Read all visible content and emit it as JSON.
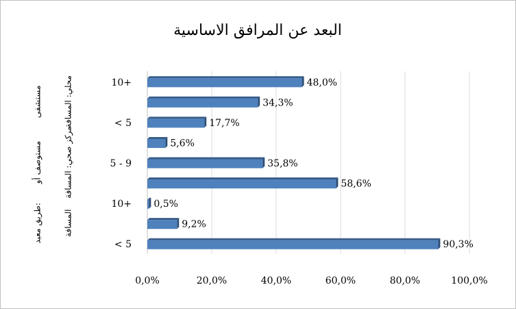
{
  "chart_data": {
    "type": "bar",
    "orientation": "horizontal",
    "title": "البعد عن المرافق الاساسية",
    "categories": [
      "10+",
      null,
      "< 5",
      null,
      "5 - 9",
      null,
      "10+",
      null,
      "< 5"
    ],
    "groups": [
      {
        "lines": [
          "مستشفى",
          "محلي: المسافة"
        ]
      },
      {
        "lines": [
          "مستوصف أو",
          "مركز صحي: المسافة"
        ]
      },
      {
        "lines": [
          "طريق معبد:",
          "المسافة"
        ]
      }
    ],
    "values": [
      48.0,
      34.3,
      17.7,
      5.6,
      35.8,
      58.6,
      0.5,
      9.2,
      90.3
    ],
    "value_labels": [
      "48,0%",
      "34,3%",
      "17,7%",
      "5,6%",
      "35,8%",
      "58,6%",
      "0,5%",
      "9,2%",
      "90,3%"
    ],
    "color": "#4f81bd",
    "xlim": [
      0,
      100
    ],
    "xticks": [
      {
        "value": 0,
        "label": "0,0%"
      },
      {
        "value": 20,
        "label": "20,0%"
      },
      {
        "value": 40,
        "label": "40,0%"
      },
      {
        "value": 60,
        "label": "60,0%"
      },
      {
        "value": 80,
        "label": "80,0%"
      },
      {
        "value": 100,
        "label": "100,0%"
      }
    ],
    "grid": true
  }
}
